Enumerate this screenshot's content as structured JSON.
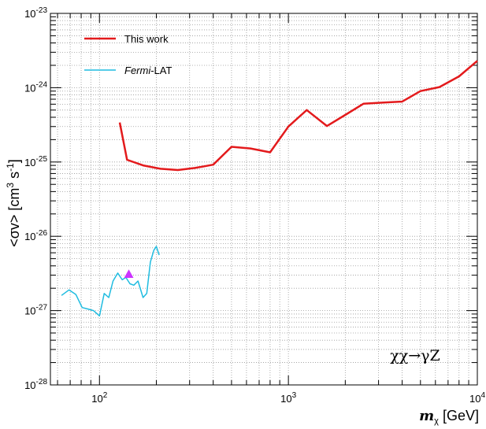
{
  "chart_data": {
    "type": "line",
    "title": "",
    "xlabel_main": "m",
    "xlabel_sub": "χ",
    "xlabel_unit": "[GeV]",
    "ylabel_main": "<σv> [cm",
    "ylabel_sup1": "3",
    "ylabel_mid": " s",
    "ylabel_sup2": "-1",
    "ylabel_end": "]",
    "x_scale": "log",
    "y_scale": "log",
    "xlim": [
      55,
      10000
    ],
    "ylim": [
      1e-28,
      1e-23
    ],
    "x_ticks": [
      {
        "value": 100,
        "base": "10",
        "exp": "2"
      },
      {
        "value": 1000,
        "base": "10",
        "exp": "3"
      },
      {
        "value": 10000,
        "base": "10",
        "exp": "4"
      }
    ],
    "y_ticks": [
      {
        "value": 1e-28,
        "base": "10",
        "exp": "-28"
      },
      {
        "value": 1e-27,
        "base": "10",
        "exp": "-27"
      },
      {
        "value": 1e-26,
        "base": "10",
        "exp": "-26"
      },
      {
        "value": 1e-25,
        "base": "10",
        "exp": "-25"
      },
      {
        "value": 1e-24,
        "base": "10",
        "exp": "-24"
      },
      {
        "value": 1e-23,
        "base": "10",
        "exp": "-23"
      }
    ],
    "grid": true,
    "legend_position": "top-left",
    "annotation": "χχ→γZ",
    "series": [
      {
        "name": "This work",
        "name_italic_part": "",
        "name_rest": "This work",
        "color": "#e31a1c",
        "x": [
          128,
          140,
          170,
          210,
          260,
          320,
          400,
          500,
          630,
          800,
          1000,
          1250,
          1600,
          2000,
          2500,
          3200,
          4000,
          5000,
          6300,
          8000,
          10000
        ],
        "y": [
          3.4e-25,
          1.07e-25,
          9e-26,
          8.1e-26,
          7.8e-26,
          8.3e-26,
          9.2e-26,
          1.6e-25,
          1.52e-25,
          1.35e-25,
          3e-25,
          5e-25,
          3.05e-25,
          4.3e-25,
          6.1e-25,
          6.3e-25,
          6.5e-25,
          9e-25,
          1.02e-24,
          1.42e-24,
          2.3e-24
        ]
      },
      {
        "name": "Fermi-LAT",
        "name_italic_part": "Fermi",
        "name_rest": "-LAT",
        "color": "#1fbce0",
        "x": [
          63,
          69,
          75,
          81,
          87,
          93,
          100,
          106,
          112,
          118,
          125,
          132,
          138,
          145,
          152,
          160,
          170,
          178,
          186,
          194,
          200,
          207
        ],
        "y": [
          1.6e-27,
          1.9e-27,
          1.65e-27,
          1.1e-27,
          1.05e-27,
          1e-27,
          8.5e-28,
          1.7e-27,
          1.5e-27,
          2.5e-27,
          3.2e-27,
          2.6e-27,
          2.8e-27,
          2.3e-27,
          2.2e-27,
          2.5e-27,
          1.5e-27,
          1.7e-27,
          4.5e-27,
          6.5e-27,
          7.3e-27,
          5.6e-27
        ]
      }
    ],
    "markers": [
      {
        "shape": "triangle",
        "color": "#cc33ff",
        "x": 143,
        "y": 3.1e-27
      }
    ]
  }
}
